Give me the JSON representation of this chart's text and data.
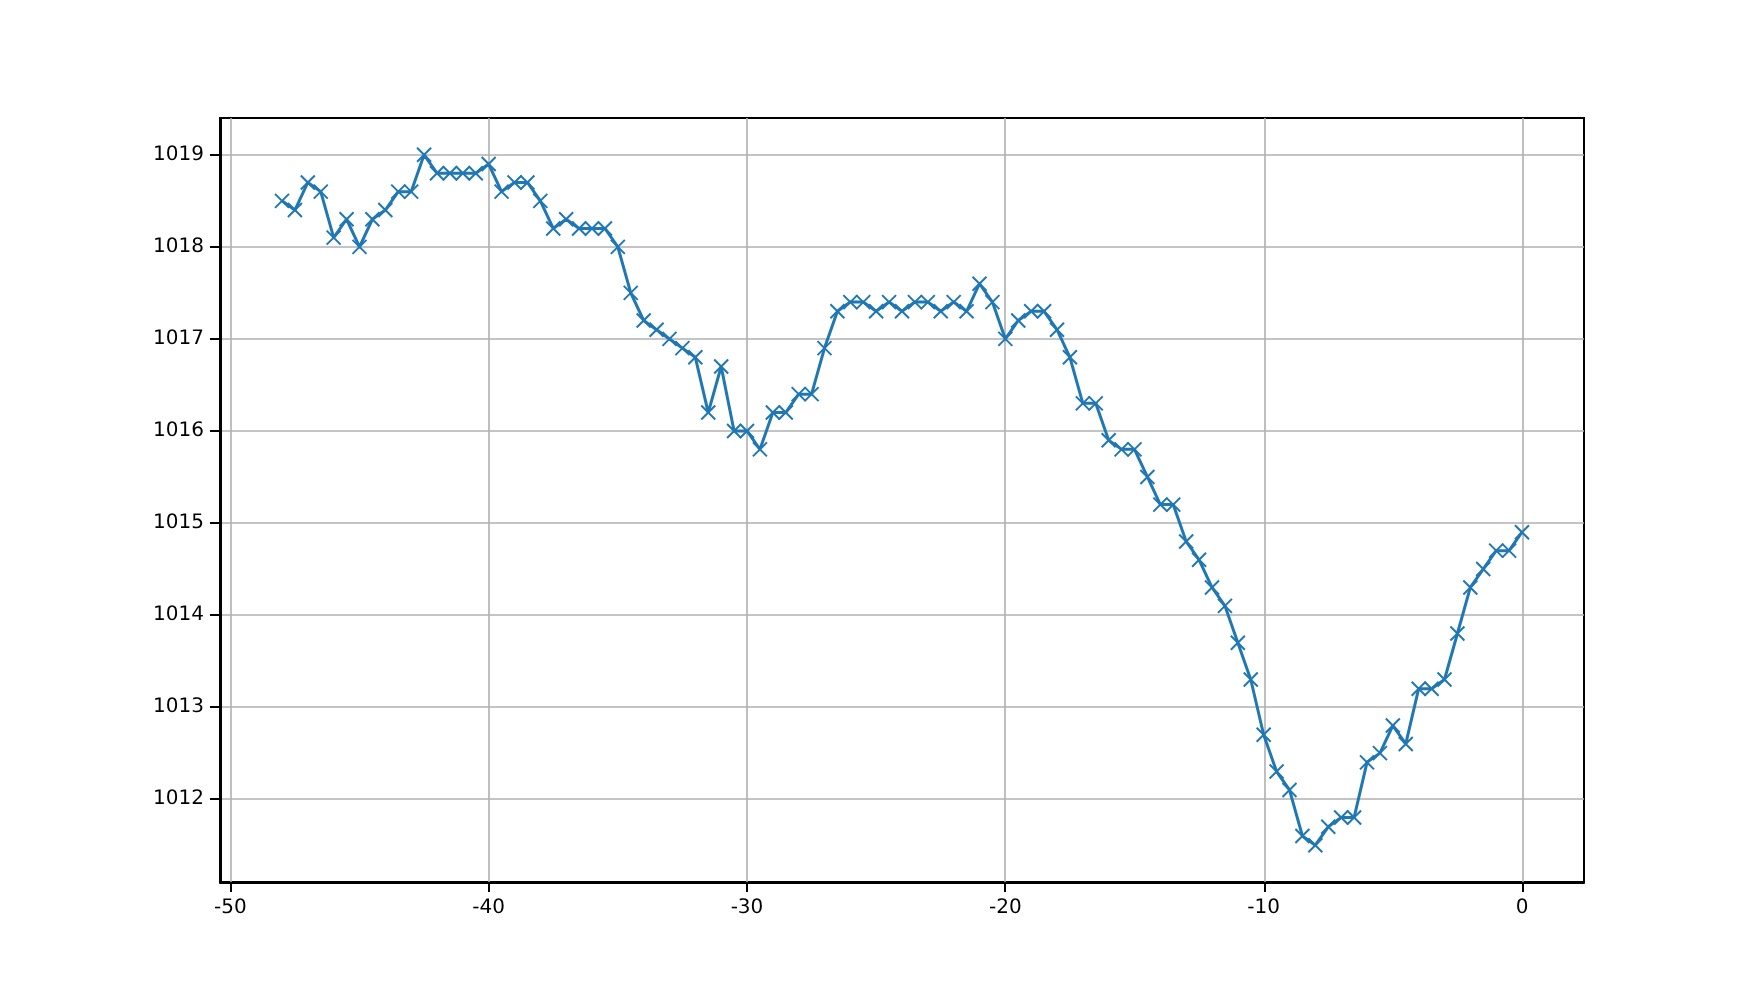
{
  "chart_data": {
    "type": "line",
    "marker": "cross",
    "grid": true,
    "line_style": "solid",
    "xlim": [
      -50.4,
      2.4
    ],
    "xticks": [
      -50,
      -40,
      -30,
      -20,
      -10,
      0
    ],
    "ylim": [
      1011.1,
      1019.4
    ],
    "yticks": [
      1012,
      1013,
      1014,
      1015,
      1016,
      1017,
      1018,
      1019
    ],
    "x": [
      -48,
      -47.5,
      -47,
      -46.5,
      -46,
      -45.5,
      -45,
      -44.5,
      -44,
      -43.5,
      -43,
      -42.5,
      -42,
      -41.5,
      -41,
      -40.5,
      -40,
      -39.5,
      -39,
      -38.5,
      -38,
      -37.5,
      -37,
      -36.5,
      -36,
      -35.5,
      -35,
      -34.5,
      -34,
      -33.5,
      -33,
      -32.5,
      -32,
      -31.5,
      -31,
      -30.5,
      -30,
      -29.5,
      -29,
      -28.5,
      -28,
      -27.5,
      -27,
      -26.5,
      -26,
      -25.5,
      -25,
      -24.5,
      -24,
      -23.5,
      -23,
      -22.5,
      -22,
      -21.5,
      -21,
      -20.5,
      -20,
      -19.5,
      -19,
      -18.5,
      -18,
      -17.5,
      -17,
      -16.5,
      -16,
      -15.5,
      -15,
      -14.5,
      -14,
      -13.5,
      -13,
      -12.5,
      -12,
      -11.5,
      -11,
      -10.5,
      -10,
      -9.5,
      -9,
      -8.5,
      -8,
      -7.5,
      -7,
      -6.5,
      -6,
      -5.5,
      -5,
      -4.5,
      -4,
      -3.5,
      -3,
      -2.5,
      -2,
      -1.5,
      -1,
      -0.5,
      0
    ],
    "series": [
      {
        "color": "#1f77b4",
        "values": [
          1018.5,
          1018.4,
          1018.7,
          1018.6,
          1018.1,
          1018.3,
          1018.0,
          1018.3,
          1018.4,
          1018.6,
          1018.6,
          1019.0,
          1018.8,
          1018.8,
          1018.8,
          1018.8,
          1018.9,
          1018.6,
          1018.7,
          1018.7,
          1018.5,
          1018.2,
          1018.3,
          1018.2,
          1018.2,
          1018.2,
          1018.0,
          1017.5,
          1017.2,
          1017.1,
          1017.0,
          1016.9,
          1016.8,
          1016.2,
          1016.7,
          1016.0,
          1016.0,
          1015.8,
          1016.2,
          1016.2,
          1016.4,
          1016.4,
          1016.9,
          1017.3,
          1017.4,
          1017.4,
          1017.3,
          1017.4,
          1017.3,
          1017.4,
          1017.4,
          1017.3,
          1017.4,
          1017.3,
          1017.6,
          1017.4,
          1017.0,
          1017.2,
          1017.3,
          1017.3,
          1017.1,
          1016.8,
          1016.3,
          1016.3,
          1015.9,
          1015.8,
          1015.8,
          1015.5,
          1015.2,
          1015.2,
          1014.8,
          1014.6,
          1014.3,
          1014.1,
          1013.7,
          1013.3,
          1012.7,
          1012.3,
          1012.1,
          1011.6,
          1011.5,
          1011.7,
          1011.8,
          1011.8,
          1012.4,
          1012.5,
          1012.8,
          1012.6,
          1013.2,
          1013.2,
          1013.3,
          1013.8,
          1014.3,
          1014.5,
          1014.7,
          1014.7,
          1014.9
        ]
      }
    ]
  }
}
